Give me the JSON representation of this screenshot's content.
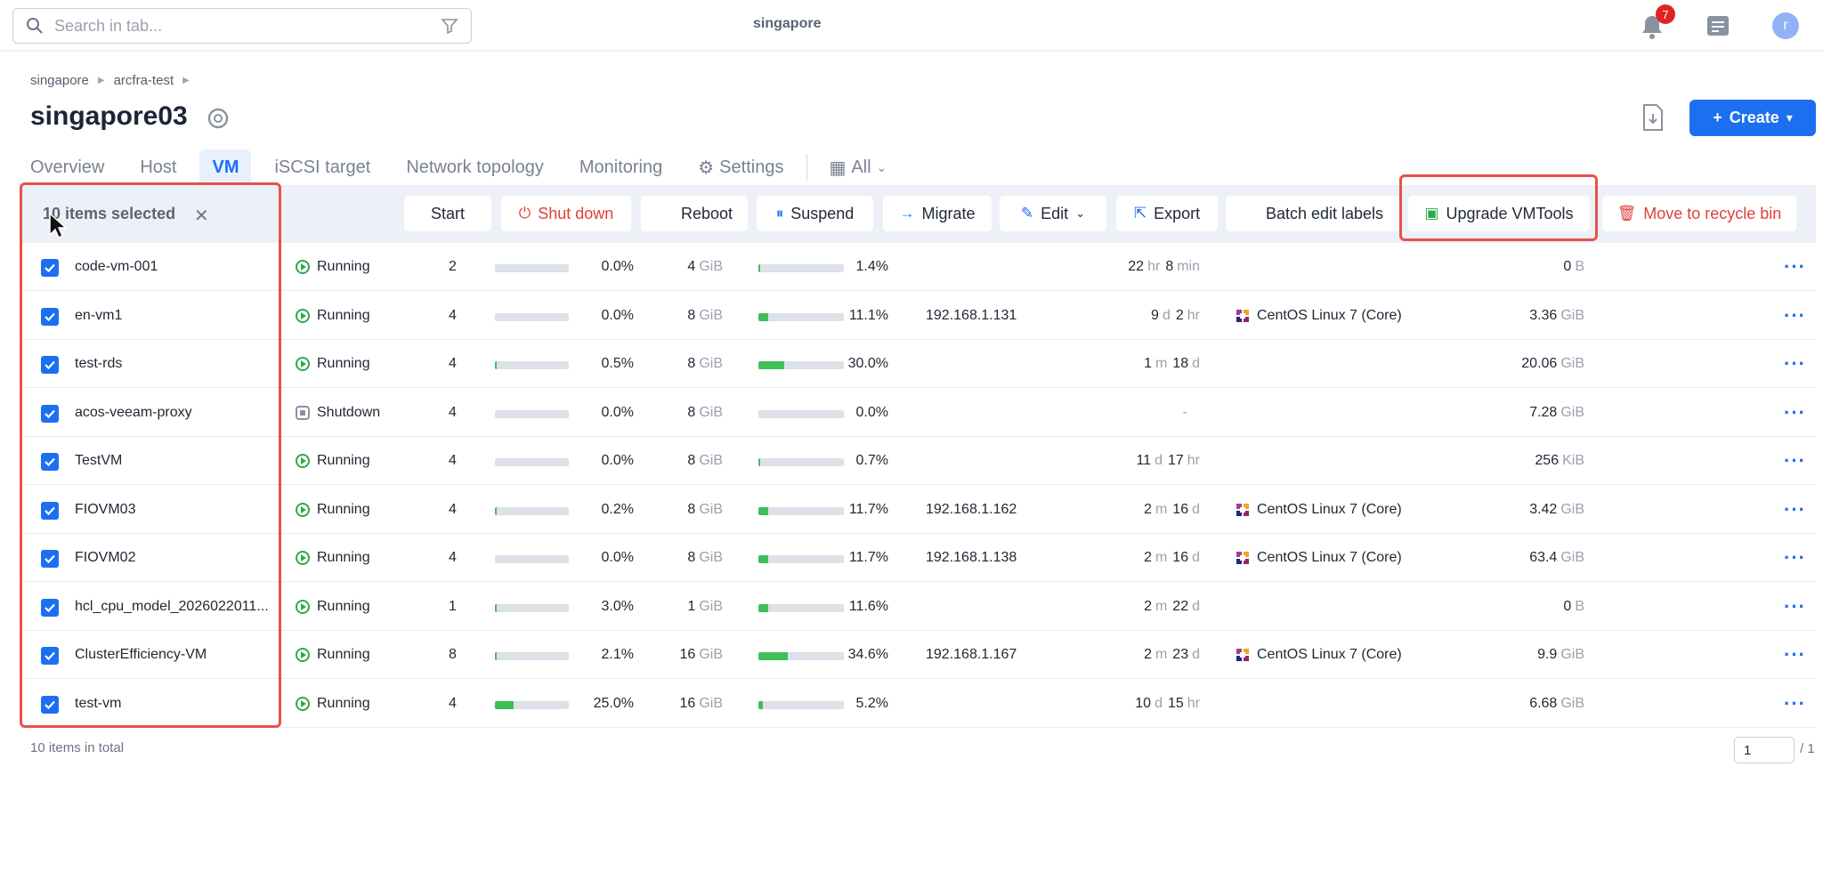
{
  "topbar": {
    "search_placeholder": "Search in tab...",
    "center_label": "singapore",
    "notification_count": "7",
    "avatar_letter": "r"
  },
  "breadcrumb": [
    "singapore",
    "arcfra-test"
  ],
  "page": {
    "title": "singapore03",
    "create_label": "Create"
  },
  "tabs": [
    {
      "label": "Overview",
      "active": false
    },
    {
      "label": "Host",
      "active": false
    },
    {
      "label": "VM",
      "active": true
    },
    {
      "label": "iSCSI target",
      "active": false
    },
    {
      "label": "Network topology",
      "active": false
    },
    {
      "label": "Monitoring",
      "active": false
    },
    {
      "label": "Settings",
      "active": false
    },
    {
      "label": "All",
      "active": false
    }
  ],
  "selection": {
    "text": "10 items selected"
  },
  "actions": {
    "start": "Start",
    "shut_down": "Shut down",
    "reboot": "Reboot",
    "suspend": "Suspend",
    "migrate": "Migrate",
    "edit": "Edit",
    "export": "Export",
    "batch_edit_labels": "Batch edit labels",
    "upgrade_vmtools": "Upgrade VMTools",
    "move_to_recycle_bin": "Move to recycle bin"
  },
  "colors": {
    "accent": "#1d6ff2",
    "danger": "#e0403a",
    "running": "#2eaa4a",
    "highlight": "#e5534b"
  },
  "rows": [
    {
      "name": "code-vm-001",
      "status": "Running",
      "vcpu": "2",
      "cpu_pct": "0.0%",
      "cpu_frac": 0.0,
      "mem_num": "4",
      "mem_unit": "GiB",
      "mem_pct": "1.4%",
      "mem_frac": 0.014,
      "ip": "",
      "up1": "22",
      "up1u": "hr",
      "up2": "8",
      "up2u": "min",
      "os": "",
      "disk_num": "0",
      "disk_unit": "B"
    },
    {
      "name": "en-vm1",
      "status": "Running",
      "vcpu": "4",
      "cpu_pct": "0.0%",
      "cpu_frac": 0.0,
      "mem_num": "8",
      "mem_unit": "GiB",
      "mem_pct": "11.1%",
      "mem_frac": 0.111,
      "ip": "192.168.1.131",
      "up1": "9",
      "up1u": "d",
      "up2": "2",
      "up2u": "hr",
      "os": "CentOS Linux 7 (Core)",
      "disk_num": "3.36",
      "disk_unit": "GiB"
    },
    {
      "name": "test-rds",
      "status": "Running",
      "vcpu": "4",
      "cpu_pct": "0.5%",
      "cpu_frac": 0.005,
      "mem_num": "8",
      "mem_unit": "GiB",
      "mem_pct": "30.0%",
      "mem_frac": 0.3,
      "ip": "",
      "up1": "1",
      "up1u": "m",
      "up2": "18",
      "up2u": "d",
      "os": "",
      "disk_num": "20.06",
      "disk_unit": "GiB"
    },
    {
      "name": "acos-veeam-proxy",
      "status": "Shutdown",
      "vcpu": "4",
      "cpu_pct": "0.0%",
      "cpu_frac": 0.0,
      "mem_num": "8",
      "mem_unit": "GiB",
      "mem_pct": "0.0%",
      "mem_frac": 0.0,
      "ip": "",
      "up1": "-",
      "up1u": "",
      "up2": "",
      "up2u": "",
      "os": "",
      "disk_num": "7.28",
      "disk_unit": "GiB"
    },
    {
      "name": "TestVM",
      "status": "Running",
      "vcpu": "4",
      "cpu_pct": "0.0%",
      "cpu_frac": 0.0,
      "mem_num": "8",
      "mem_unit": "GiB",
      "mem_pct": "0.7%",
      "mem_frac": 0.007,
      "ip": "",
      "up1": "11",
      "up1u": "d",
      "up2": "17",
      "up2u": "hr",
      "os": "",
      "disk_num": "256",
      "disk_unit": "KiB"
    },
    {
      "name": "FIOVM03",
      "status": "Running",
      "vcpu": "4",
      "cpu_pct": "0.2%",
      "cpu_frac": 0.002,
      "mem_num": "8",
      "mem_unit": "GiB",
      "mem_pct": "11.7%",
      "mem_frac": 0.117,
      "ip": "192.168.1.162",
      "up1": "2",
      "up1u": "m",
      "up2": "16",
      "up2u": "d",
      "os": "CentOS Linux 7 (Core)",
      "disk_num": "3.42",
      "disk_unit": "GiB"
    },
    {
      "name": "FIOVM02",
      "status": "Running",
      "vcpu": "4",
      "cpu_pct": "0.0%",
      "cpu_frac": 0.0,
      "mem_num": "8",
      "mem_unit": "GiB",
      "mem_pct": "11.7%",
      "mem_frac": 0.117,
      "ip": "192.168.1.138",
      "up1": "2",
      "up1u": "m",
      "up2": "16",
      "up2u": "d",
      "os": "CentOS Linux 7 (Core)",
      "disk_num": "63.4",
      "disk_unit": "GiB"
    },
    {
      "name": "hcl_cpu_model_2026022011...",
      "status": "Running",
      "vcpu": "1",
      "cpu_pct": "3.0%",
      "cpu_frac": 0.03,
      "mem_num": "1",
      "mem_unit": "GiB",
      "mem_pct": "11.6%",
      "mem_frac": 0.116,
      "ip": "",
      "up1": "2",
      "up1u": "m",
      "up2": "22",
      "up2u": "d",
      "os": "",
      "disk_num": "0",
      "disk_unit": "B"
    },
    {
      "name": "ClusterEfficiency-VM",
      "status": "Running",
      "vcpu": "8",
      "cpu_pct": "2.1%",
      "cpu_frac": 0.021,
      "mem_num": "16",
      "mem_unit": "GiB",
      "mem_pct": "34.6%",
      "mem_frac": 0.346,
      "ip": "192.168.1.167",
      "up1": "2",
      "up1u": "m",
      "up2": "23",
      "up2u": "d",
      "os": "CentOS Linux 7 (Core)",
      "disk_num": "9.9",
      "disk_unit": "GiB"
    },
    {
      "name": "test-vm",
      "status": "Running",
      "vcpu": "4",
      "cpu_pct": "25.0%",
      "cpu_frac": 0.25,
      "mem_num": "16",
      "mem_unit": "GiB",
      "mem_pct": "5.2%",
      "mem_frac": 0.052,
      "ip": "",
      "up1": "10",
      "up1u": "d",
      "up2": "15",
      "up2u": "hr",
      "os": "",
      "disk_num": "6.68",
      "disk_unit": "GiB"
    }
  ],
  "footer": {
    "total_text": "10 items in total",
    "page_value": "1",
    "page_total": "/ 1"
  }
}
